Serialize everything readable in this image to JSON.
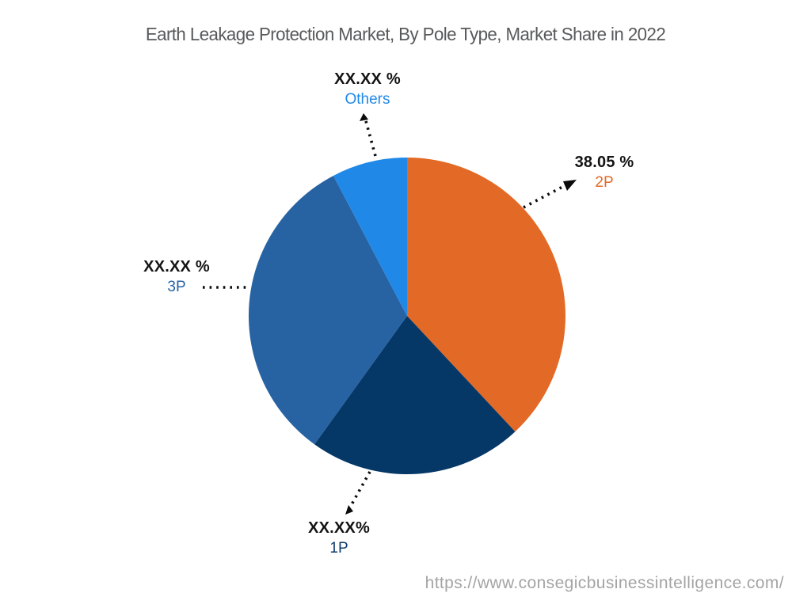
{
  "title": "Earth Leakage Protection Market, By Pole Type, Market Share in 2022",
  "footer": {
    "url": "https://www.consegicbusinessintelligence.com/"
  },
  "chart_data": {
    "type": "pie",
    "title": "Earth Leakage Protection Market, By Pole Type, Market Share in 2022",
    "start_angle_deg": 0,
    "direction": "clockwise",
    "legend_position": "callout-labels",
    "slices": [
      {
        "label": "2P",
        "value_label": "38.05 %",
        "value_pct": 38.05,
        "color": "#E26A26",
        "label_color": "#E26A26"
      },
      {
        "label": "1P",
        "value_label": "XX.XX%",
        "value_pct": 21.89,
        "color": "#053767",
        "label_color": "#0D3B6E"
      },
      {
        "label": "3P",
        "value_label": "XX.XX %",
        "value_pct": 32.36,
        "color": "#2763A3",
        "label_color": "#2763A3"
      },
      {
        "label": "Others",
        "value_label": "XX.XX %",
        "value_pct": 7.7,
        "color": "#2089E8",
        "label_color": "#2189E8"
      }
    ],
    "value_color": "#131313"
  }
}
